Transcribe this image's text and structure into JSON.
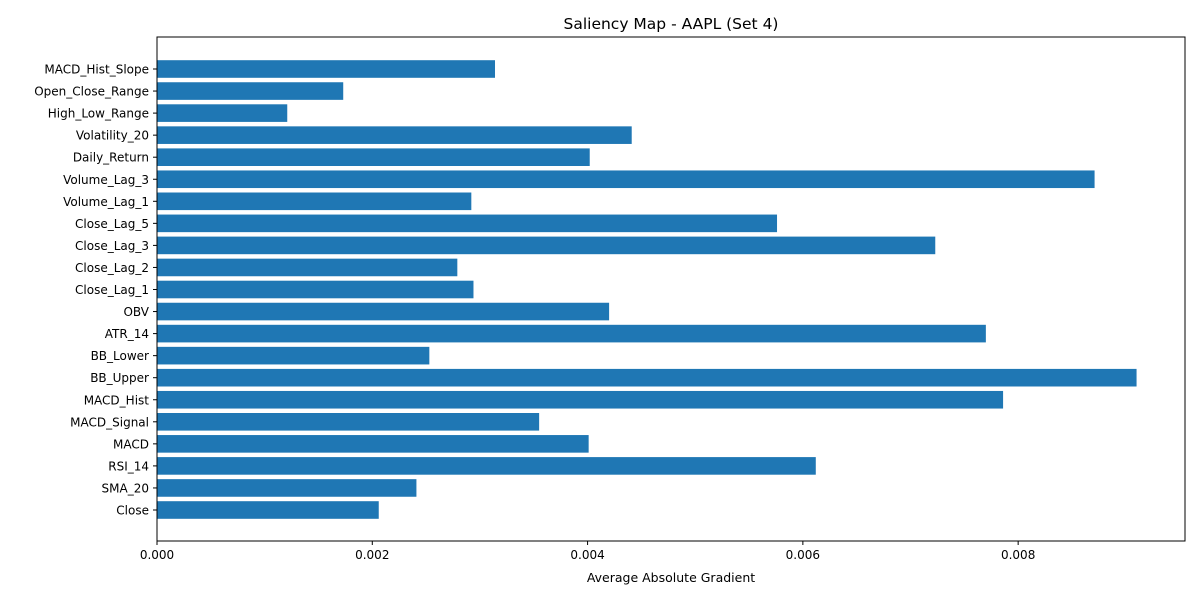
{
  "chart_data": {
    "type": "bar",
    "orientation": "horizontal",
    "title": "Saliency Map - AAPL (Set 4)",
    "xlabel": "Average Absolute Gradient",
    "ylabel": "",
    "xlim": [
      0,
      0.00955
    ],
    "xticks": [
      {
        "value": 0,
        "label": "0.000"
      },
      {
        "value": 0.002,
        "label": "0.002"
      },
      {
        "value": 0.004,
        "label": "0.004"
      },
      {
        "value": 0.006,
        "label": "0.006"
      },
      {
        "value": 0.008,
        "label": "0.008"
      }
    ],
    "grid": false,
    "bar_color": "#1f77b4",
    "categories": [
      "Close",
      "SMA_20",
      "RSI_14",
      "MACD",
      "MACD_Signal",
      "MACD_Hist",
      "BB_Upper",
      "BB_Lower",
      "ATR_14",
      "OBV",
      "Close_Lag_1",
      "Close_Lag_2",
      "Close_Lag_3",
      "Close_Lag_5",
      "Volume_Lag_1",
      "Volume_Lag_3",
      "Daily_Return",
      "Volatility_20",
      "High_Low_Range",
      "Open_Close_Range",
      "MACD_Hist_Slope"
    ],
    "values": [
      0.00206,
      0.00241,
      0.00612,
      0.00401,
      0.00355,
      0.00786,
      0.0091,
      0.00253,
      0.0077,
      0.0042,
      0.00294,
      0.00279,
      0.00723,
      0.00576,
      0.00292,
      0.00871,
      0.00402,
      0.00441,
      0.00121,
      0.00173,
      0.00314
    ]
  }
}
